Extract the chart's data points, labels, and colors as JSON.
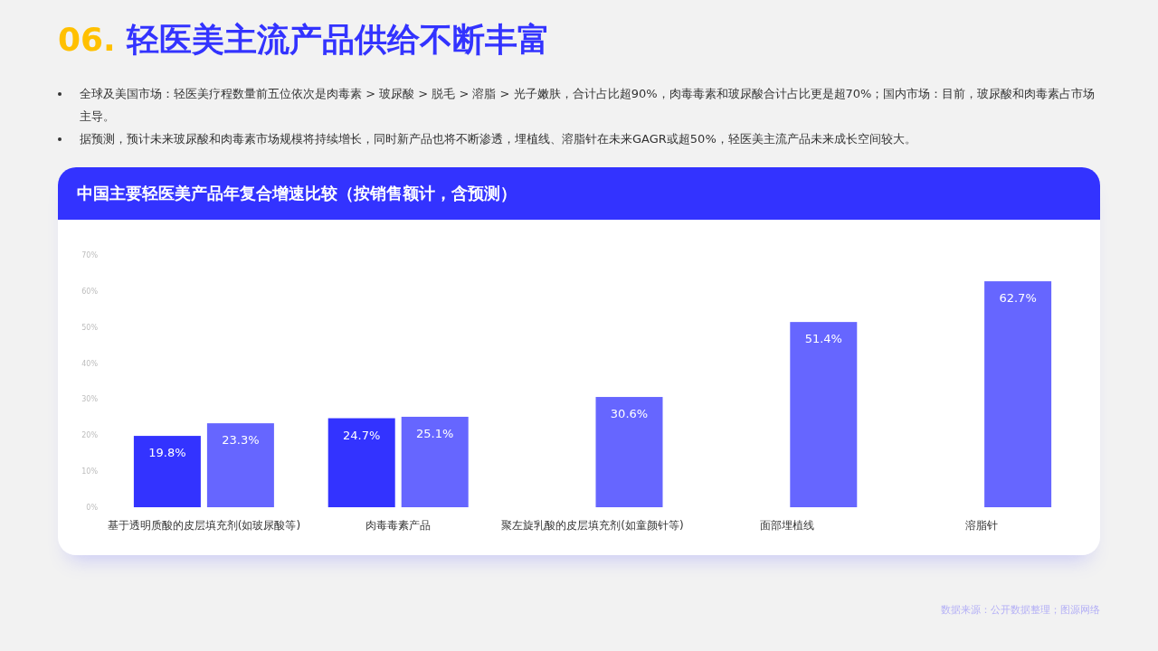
{
  "chart_data": {
    "type": "bar",
    "title": "06. 轻医美主流产品供给不断丰富",
    "subtitle": "中国主要轻医美产品年复合增速比较（按销售额计，含预测）",
    "annotations": [
      "全球及美国市场：轻医美疗程数量前五位依次是肉毒素 > 玻尿酸 > 脱毛 > 溶脂 > 光子嫩肤，合计占比超90%，肉毒毒素和玻尿酸合计占比更是超70%；国内市场：目前，玻尿酸和肉毒素占市场主导。",
      "据预测，预计未来玻尿酸和肉毒素市场规模将持续增长，同时新产品也将不断渗透，埋植线、溶脂针在未来GAGR或超50%，轻医美主流产品未来成长空间较大。",
      "数据来源：公开数据整理；图源网络"
    ],
    "categories": [
      "基于透明质酸的皮层填充剂(如玻尿酸等)",
      "肉毒毒素产品",
      "聚左旋乳酸的皮层填充剂(如童颜针等)",
      "面部埋植线",
      "溶脂针"
    ],
    "series": [
      {
        "color": "#3333ff",
        "values": [
          19.8,
          24.7,
          null,
          null,
          null
        ],
        "value_labels": [
          "19.8%",
          "24.7%",
          null,
          null,
          null
        ]
      },
      {
        "color": "#6666ff",
        "values": [
          23.3,
          25.1,
          30.6,
          51.4,
          62.7
        ],
        "value_labels": [
          "23.3%",
          "25.1%",
          "30.6%",
          "51.4%",
          "62.7%"
        ]
      }
    ],
    "ylim": [
      0,
      70
    ],
    "yticks": [
      {
        "value": 0,
        "label": "0%"
      },
      {
        "value": 10,
        "label": "10%"
      },
      {
        "value": 20,
        "label": "20%"
      },
      {
        "value": 30,
        "label": "30%"
      },
      {
        "value": 40,
        "label": "40%"
      },
      {
        "value": 50,
        "label": "50%"
      },
      {
        "value": 60,
        "label": "60%"
      },
      {
        "value": 70,
        "label": "70%"
      }
    ]
  }
}
